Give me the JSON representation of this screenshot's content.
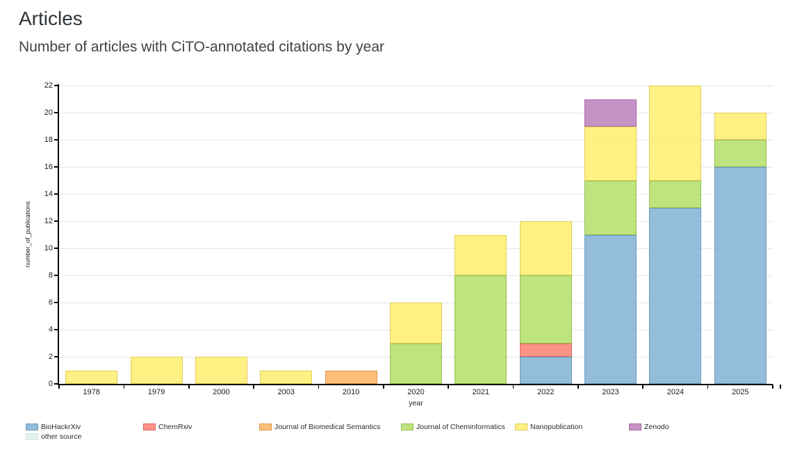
{
  "page": {
    "title": "Articles",
    "subtitle": "Number of articles with CiTO-annotated citations by year"
  },
  "chart_data": {
    "type": "bar",
    "stacked": true,
    "title": "Articles",
    "subtitle": "Number of articles with CiTO-annotated citations by year",
    "xlabel": "year",
    "ylabel": "number_of_publications",
    "ylim": [
      0,
      22
    ],
    "ytick_step": 2,
    "grid": true,
    "legend_position": "bottom",
    "categories": [
      "1978",
      "1979",
      "2000",
      "2003",
      "2010",
      "2020",
      "2021",
      "2022",
      "2023",
      "2024",
      "2025"
    ],
    "series": [
      {
        "name": "BioHackrXiv",
        "fill": "rgba(128,177,211,0.85)",
        "stroke": "#6c99b9",
        "values": [
          0,
          0,
          0,
          0,
          0,
          0,
          0,
          2,
          11,
          13,
          16
        ]
      },
      {
        "name": "ChemRxiv",
        "fill": "rgba(251,128,114,0.85)",
        "stroke": "#d96a5e",
        "values": [
          0,
          0,
          0,
          0,
          0,
          0,
          0,
          1,
          0,
          0,
          0
        ]
      },
      {
        "name": "Journal of Biomedical Semantics",
        "fill": "rgba(253,180,98,0.85)",
        "stroke": "#dd9a4e",
        "values": [
          0,
          0,
          0,
          0,
          1,
          0,
          0,
          0,
          0,
          0,
          0
        ]
      },
      {
        "name": "Journal of Cheminformatics",
        "fill": "rgba(179,222,105,0.85)",
        "stroke": "#97c14f",
        "values": [
          0,
          0,
          0,
          0,
          0,
          3,
          8,
          5,
          4,
          2,
          2
        ]
      },
      {
        "name": "Nanopublication",
        "fill": "rgba(255,237,111,0.85)",
        "stroke": "#e0cf58",
        "values": [
          1,
          2,
          2,
          1,
          0,
          3,
          3,
          4,
          4,
          7,
          2
        ]
      },
      {
        "name": "Zenodo",
        "fill": "rgba(188,128,189,0.85)",
        "stroke": "#a369a4",
        "values": [
          0,
          0,
          0,
          0,
          0,
          0,
          0,
          0,
          2,
          0,
          0
        ]
      },
      {
        "name": "other source",
        "fill": "#e4f3ee",
        "stroke": "#d0e6de",
        "values": [
          0,
          0,
          0,
          0,
          0,
          0,
          0,
          0,
          0,
          0,
          0
        ]
      }
    ],
    "totals_by_year": [
      1,
      2,
      2,
      1,
      1,
      6,
      11,
      12,
      21,
      22,
      20
    ]
  }
}
